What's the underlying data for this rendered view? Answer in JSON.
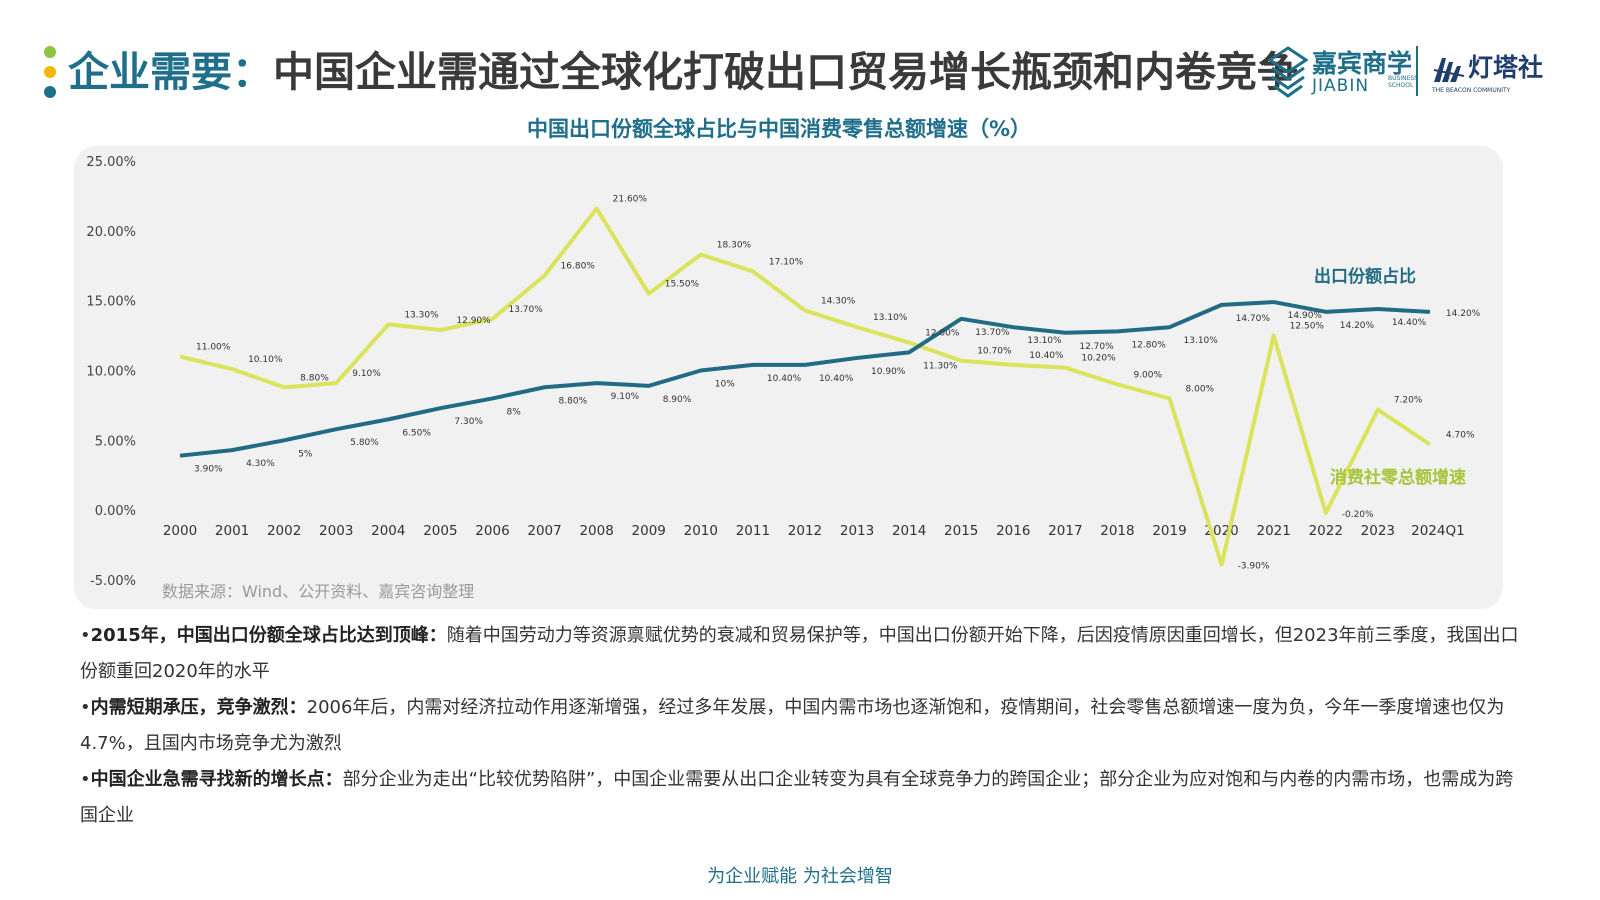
{
  "header": {
    "title_lead": "企业需要：",
    "title_rest": "中国企业需通过全球化打破出口贸易增长瓶颈和内卷竞争",
    "brand_name": "嘉宾商学",
    "brand_en": "JIABIN",
    "brand_sub": "BUSINESS SCHOOL",
    "beacon_name": "灯塔社",
    "beacon_en": "THE BEACON COMMUNITY"
  },
  "colors": {
    "accent": "#1f6f8b",
    "export_line": "#216b85",
    "retail_line": "#dbe35a",
    "retail_label": "#a8c43a",
    "panel": "#f1f1f1"
  },
  "chart_data": {
    "type": "line",
    "title": "中国出口份额全球占比与中国消费零售总额增速（%）",
    "categories": [
      "2000",
      "2001",
      "2002",
      "2003",
      "2004",
      "2005",
      "2006",
      "2007",
      "2008",
      "2009",
      "2010",
      "2011",
      "2012",
      "2013",
      "2014",
      "2015",
      "2016",
      "2017",
      "2018",
      "2019",
      "2020",
      "2021",
      "2022",
      "2023",
      "2024Q1"
    ],
    "y_ticks": [
      "25.00%",
      "20.00%",
      "15.00%",
      "10.00%",
      "5.00%",
      "0.00%",
      "-5.00%"
    ],
    "ylim": [
      -5,
      25
    ],
    "grid": false,
    "series": [
      {
        "name": "出口份额占比",
        "values": [
          3.9,
          4.3,
          5.0,
          5.8,
          6.5,
          7.3,
          8.0,
          8.8,
          9.1,
          8.9,
          10.0,
          10.4,
          10.4,
          10.9,
          11.3,
          13.7,
          13.1,
          12.7,
          12.8,
          13.1,
          14.7,
          14.9,
          14.2,
          14.4,
          14.2
        ],
        "labels": [
          "3.90%",
          "4.30%",
          "5%",
          "5.80%",
          "6.50%",
          "7.30%",
          "8%",
          "8.80%",
          "9.10%",
          "8.90%",
          "10%",
          "10.40%",
          "10.40%",
          "10.90%",
          "11.30%",
          "13.70%",
          "13.10%",
          "12.70%",
          "12.80%",
          "13.10%",
          "14.70%",
          "14.90%",
          "14.20%",
          "14.40%",
          "14.20%"
        ]
      },
      {
        "name": "消费社零总额增速",
        "values": [
          11.0,
          10.1,
          8.8,
          9.1,
          13.3,
          12.9,
          13.7,
          16.8,
          21.6,
          15.5,
          18.3,
          17.1,
          14.3,
          13.1,
          12.0,
          10.7,
          10.4,
          10.2,
          9.0,
          8.0,
          -3.9,
          12.5,
          -0.2,
          7.2,
          4.7
        ],
        "labels": [
          "11.00%",
          "10.10%",
          "8.80%",
          "9.10%",
          "13.30%",
          "12.90%",
          "13.70%",
          "16.80%",
          "21.60%",
          "15.50%",
          "18.30%",
          "17.10%",
          "14.30%",
          "13.10%",
          "12.00%",
          "10.70%",
          "10.40%",
          "10.20%",
          "9.00%",
          "8.00%",
          "-3.90%",
          "12.50%",
          "-0.20%",
          "7.20%",
          "4.70%"
        ]
      }
    ],
    "source": "数据来源：Wind、公开资料、嘉宾咨询整理"
  },
  "bullets": [
    {
      "prefix": "•",
      "bold": "2015年，中国出口份额全球占比达到顶峰：",
      "text": "随着中国劳动力等资源禀赋优势的衰减和贸易保护等，中国出口份额开始下降，后因疫情原因重回增长，但2023年前三季度，我国出口份额重回2020年的水平"
    },
    {
      "prefix": "•",
      "bold": "内需短期承压，竞争激烈：",
      "text": "2006年后，内需对经济拉动作用逐渐增强，经过多年发展，中国内需市场也逐渐饱和，疫情期间，社会零售总额增速一度为负，今年一季度增速也仅为4.7%，且国内市场竞争尤为激烈"
    },
    {
      "prefix": "•",
      "bold": "中国企业急需寻找新的增长点：",
      "text": "部分企业为走出“比较优势陷阱”，中国企业需要从出口企业转变为具有全球竞争力的跨国企业；部分企业为应对饱和与内卷的内需市场，也需成为跨国企业"
    }
  ],
  "footer": "为企业赋能  为社会增智"
}
